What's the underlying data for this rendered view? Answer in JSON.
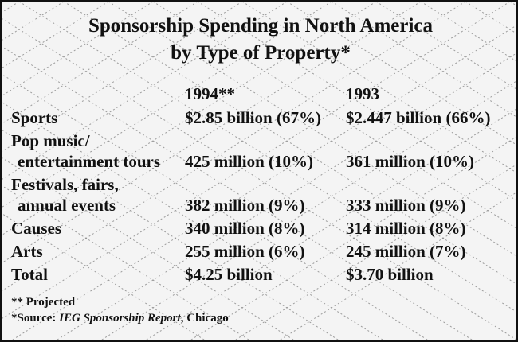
{
  "chart_data": {
    "type": "table",
    "title": "Sponsorship Spending in North America",
    "subtitle": "by Type of Property*",
    "columns": [
      "",
      "1994**",
      "1993"
    ],
    "rows": [
      {
        "label": [
          "Sports"
        ],
        "c1994": "$2.85 billion (67%)",
        "c1993": "$2.447 billion (66%)"
      },
      {
        "label": [
          "Pop music/",
          "entertainment tours"
        ],
        "c1994": "425 million (10%)",
        "c1993": "361 million (10%)"
      },
      {
        "label": [
          "Festivals, fairs,",
          "annual events"
        ],
        "c1994": "382 million (9%)",
        "c1993": "333 million (9%)"
      },
      {
        "label": [
          "Causes"
        ],
        "c1994": "340 million (8%)",
        "c1993": "314 million (8%)"
      },
      {
        "label": [
          "Arts"
        ],
        "c1994": "255 million (6%)",
        "c1993": "245 million (7%)"
      },
      {
        "label": [
          "Total"
        ],
        "c1994": "$4.25 billion",
        "c1993": "$3.70 billion"
      }
    ],
    "footnotes": {
      "projected": "** Projected",
      "source_prefix": "*Source: ",
      "source_italic": "IEG Sponsorship Report",
      "source_suffix": ", Chicago"
    }
  },
  "colors": {
    "background": "#f4f4f4",
    "pattern": "#555555",
    "text": "#111111"
  }
}
